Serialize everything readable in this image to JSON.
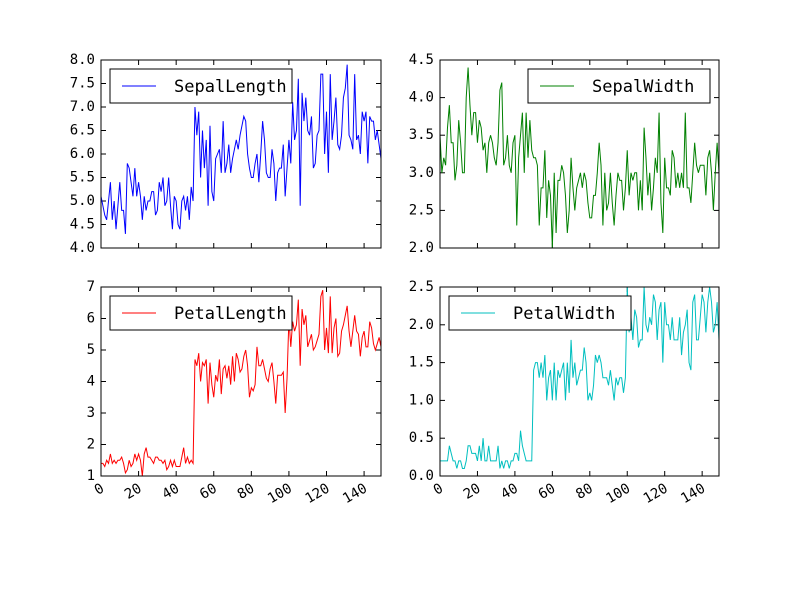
{
  "chart_data": [
    {
      "type": "line",
      "series": [
        {
          "name": "SepalLength",
          "color": "#0000ff",
          "values": [
            5.1,
            4.9,
            4.7,
            4.6,
            5.0,
            5.4,
            4.6,
            5.0,
            4.4,
            4.9,
            5.4,
            4.8,
            4.8,
            4.3,
            5.8,
            5.7,
            5.4,
            5.1,
            5.7,
            5.1,
            5.4,
            5.1,
            4.6,
            5.1,
            4.8,
            5.0,
            5.0,
            5.2,
            5.2,
            4.7,
            4.8,
            5.4,
            5.2,
            5.5,
            4.9,
            5.0,
            5.5,
            4.9,
            4.4,
            5.1,
            5.0,
            4.5,
            4.4,
            5.0,
            5.1,
            4.8,
            5.1,
            4.6,
            5.3,
            5.0,
            7.0,
            6.4,
            6.9,
            5.5,
            6.5,
            5.7,
            6.3,
            4.9,
            6.6,
            5.2,
            5.0,
            5.9,
            6.0,
            6.1,
            5.6,
            6.7,
            5.6,
            5.8,
            6.2,
            5.6,
            5.9,
            6.1,
            6.3,
            6.1,
            6.4,
            6.6,
            6.8,
            6.7,
            6.0,
            5.7,
            5.5,
            5.5,
            5.8,
            6.0,
            5.4,
            6.0,
            6.7,
            6.3,
            5.6,
            5.5,
            5.5,
            6.1,
            5.8,
            5.0,
            5.6,
            5.7,
            5.7,
            6.2,
            5.1,
            5.7,
            6.3,
            5.8,
            7.1,
            6.3,
            6.5,
            7.6,
            4.9,
            7.3,
            6.7,
            7.2,
            6.5,
            6.4,
            6.8,
            5.7,
            5.8,
            6.4,
            6.5,
            7.7,
            7.7,
            6.0,
            6.9,
            5.6,
            7.7,
            6.3,
            6.7,
            7.2,
            6.2,
            6.1,
            6.4,
            7.2,
            7.4,
            7.9,
            6.4,
            6.3,
            6.1,
            7.7,
            6.3,
            6.4,
            6.0,
            6.9,
            6.7,
            6.9,
            5.8,
            6.8,
            6.7,
            6.7,
            6.3,
            6.5,
            6.2,
            5.9
          ]
        }
      ],
      "xlim": [
        0,
        149
      ],
      "xticks": [
        0,
        20,
        40,
        60,
        80,
        100,
        120,
        140
      ],
      "ylim": [
        4.0,
        8.0
      ],
      "yticks": [
        {
          "value": 4.0,
          "label": "4.0"
        },
        4.5,
        {
          "value": 5.0,
          "label": "5.0"
        },
        5.5,
        {
          "value": 6.0,
          "label": "6.0"
        },
        6.5,
        {
          "value": 7.0,
          "label": "7.0"
        },
        7.5,
        {
          "value": 8.0,
          "label": "8.0"
        }
      ],
      "legend": "upper left"
    },
    {
      "type": "line",
      "series": [
        {
          "name": "SepalWidth",
          "color": "#008000",
          "values": [
            3.5,
            3.0,
            3.2,
            3.1,
            3.6,
            3.9,
            3.4,
            3.4,
            2.9,
            3.1,
            3.7,
            3.4,
            3.0,
            3.0,
            4.0,
            4.4,
            3.9,
            3.5,
            3.8,
            3.8,
            3.4,
            3.7,
            3.6,
            3.3,
            3.4,
            3.0,
            3.4,
            3.5,
            3.4,
            3.2,
            3.1,
            3.4,
            4.1,
            4.2,
            3.1,
            3.2,
            3.5,
            3.1,
            3.0,
            3.4,
            3.5,
            2.3,
            3.2,
            3.5,
            3.8,
            3.0,
            3.8,
            3.2,
            3.7,
            3.3,
            3.2,
            3.2,
            3.1,
            2.3,
            2.8,
            2.8,
            3.3,
            2.4,
            2.9,
            2.7,
            2.0,
            3.0,
            2.2,
            2.9,
            2.9,
            3.1,
            3.0,
            2.7,
            2.2,
            2.5,
            3.2,
            2.8,
            2.5,
            2.8,
            2.9,
            3.0,
            2.8,
            3.0,
            2.9,
            2.6,
            2.4,
            2.4,
            2.7,
            2.7,
            3.0,
            3.4,
            3.1,
            2.3,
            3.0,
            2.5,
            2.6,
            3.0,
            2.6,
            2.3,
            2.7,
            3.0,
            2.9,
            2.9,
            2.5,
            2.8,
            3.3,
            2.7,
            3.0,
            2.9,
            3.0,
            3.0,
            2.5,
            2.9,
            2.5,
            3.6,
            3.2,
            2.7,
            3.0,
            2.5,
            2.8,
            3.2,
            3.0,
            3.8,
            2.6,
            2.2,
            3.2,
            2.8,
            2.8,
            2.7,
            3.3,
            3.2,
            2.8,
            3.0,
            2.8,
            3.0,
            2.8,
            3.8,
            2.8,
            2.8,
            2.6,
            3.0,
            3.4,
            3.1,
            3.0,
            3.1,
            3.1,
            3.1,
            2.7,
            3.2,
            3.3,
            3.0,
            2.5,
            3.0,
            3.4,
            3.0
          ]
        }
      ],
      "xlim": [
        0,
        149
      ],
      "xticks": [
        0,
        20,
        40,
        60,
        80,
        100,
        120,
        140
      ],
      "ylim": [
        2.0,
        4.5
      ],
      "yticks": [
        {
          "value": 2.0,
          "label": "2.0"
        },
        2.5,
        {
          "value": 3.0,
          "label": "3.0"
        },
        3.5,
        {
          "value": 4.0,
          "label": "4.0"
        },
        4.5
      ],
      "legend": "upper right"
    },
    {
      "type": "line",
      "series": [
        {
          "name": "PetalLength",
          "color": "#ff0000",
          "values": [
            1.4,
            1.4,
            1.3,
            1.5,
            1.4,
            1.7,
            1.4,
            1.5,
            1.4,
            1.5,
            1.5,
            1.6,
            1.4,
            1.1,
            1.2,
            1.5,
            1.3,
            1.4,
            1.7,
            1.5,
            1.7,
            1.5,
            1.0,
            1.7,
            1.9,
            1.6,
            1.6,
            1.5,
            1.4,
            1.6,
            1.6,
            1.5,
            1.5,
            1.4,
            1.5,
            1.2,
            1.3,
            1.5,
            1.3,
            1.5,
            1.3,
            1.3,
            1.3,
            1.6,
            1.9,
            1.4,
            1.6,
            1.4,
            1.5,
            1.4,
            4.7,
            4.5,
            4.9,
            4.0,
            4.6,
            4.5,
            4.7,
            3.3,
            4.6,
            3.9,
            3.5,
            4.2,
            4.0,
            4.7,
            3.6,
            4.4,
            4.5,
            4.1,
            4.5,
            3.9,
            4.8,
            4.0,
            4.9,
            4.7,
            4.3,
            4.4,
            4.8,
            5.0,
            4.5,
            3.5,
            3.8,
            3.7,
            3.9,
            5.1,
            4.5,
            4.5,
            4.7,
            4.4,
            4.1,
            4.0,
            4.4,
            4.6,
            4.0,
            3.3,
            4.2,
            4.2,
            4.2,
            4.3,
            3.0,
            4.1,
            6.0,
            5.1,
            5.9,
            5.6,
            5.8,
            6.6,
            4.5,
            6.3,
            5.8,
            6.1,
            5.1,
            5.3,
            5.5,
            5.0,
            5.1,
            5.3,
            5.5,
            6.7,
            6.9,
            5.0,
            5.7,
            4.9,
            6.7,
            4.9,
            5.7,
            6.0,
            4.8,
            4.9,
            5.6,
            5.8,
            6.1,
            6.4,
            5.6,
            5.1,
            5.6,
            6.1,
            5.6,
            5.5,
            4.8,
            5.4,
            5.6,
            5.1,
            5.1,
            5.9,
            5.7,
            5.2,
            5.0,
            5.2,
            5.4,
            5.1
          ]
        }
      ],
      "xlim": [
        0,
        149
      ],
      "xticks": [
        0,
        20,
        40,
        60,
        80,
        100,
        120,
        140
      ],
      "ylim": [
        1,
        7
      ],
      "yticks": [
        1,
        2,
        3,
        4,
        5,
        6,
        7
      ],
      "legend": "upper left"
    },
    {
      "type": "line",
      "series": [
        {
          "name": "PetalWidth",
          "color": "#00bfbf",
          "values": [
            0.2,
            0.2,
            0.2,
            0.2,
            0.2,
            0.4,
            0.3,
            0.2,
            0.2,
            0.1,
            0.2,
            0.2,
            0.1,
            0.1,
            0.2,
            0.4,
            0.4,
            0.3,
            0.3,
            0.3,
            0.2,
            0.4,
            0.2,
            0.5,
            0.2,
            0.2,
            0.4,
            0.2,
            0.2,
            0.2,
            0.2,
            0.4,
            0.1,
            0.2,
            0.1,
            0.2,
            0.2,
            0.1,
            0.2,
            0.2,
            0.3,
            0.3,
            0.2,
            0.6,
            0.4,
            0.3,
            0.2,
            0.2,
            0.2,
            0.2,
            1.4,
            1.5,
            1.5,
            1.3,
            1.5,
            1.3,
            1.6,
            1.0,
            1.3,
            1.4,
            1.0,
            1.5,
            1.0,
            1.4,
            1.3,
            1.4,
            1.5,
            1.0,
            1.5,
            1.1,
            1.8,
            1.3,
            1.5,
            1.2,
            1.3,
            1.4,
            1.4,
            1.7,
            1.5,
            1.0,
            1.1,
            1.0,
            1.2,
            1.6,
            1.5,
            1.6,
            1.5,
            1.3,
            1.3,
            1.3,
            1.2,
            1.4,
            1.2,
            1.0,
            1.3,
            1.2,
            1.3,
            1.3,
            1.1,
            1.3,
            2.5,
            1.9,
            2.1,
            1.8,
            2.2,
            2.1,
            1.7,
            1.8,
            1.8,
            2.5,
            2.0,
            1.9,
            2.1,
            2.0,
            2.4,
            2.3,
            1.8,
            2.2,
            2.3,
            1.5,
            2.3,
            2.0,
            2.0,
            1.8,
            2.1,
            1.8,
            1.8,
            1.8,
            2.1,
            1.6,
            1.9,
            2.0,
            2.2,
            1.5,
            1.4,
            2.3,
            2.4,
            1.8,
            1.8,
            2.1,
            2.4,
            2.3,
            1.9,
            2.3,
            2.5,
            2.3,
            1.9,
            2.0,
            2.3,
            1.8
          ]
        }
      ],
      "xlim": [
        0,
        149
      ],
      "xticks": [
        0,
        20,
        40,
        60,
        80,
        100,
        120,
        140
      ],
      "ylim": [
        0.0,
        2.5
      ],
      "yticks": [
        {
          "value": 0.0,
          "label": "0.0"
        },
        0.5,
        {
          "value": 1.0,
          "label": "1.0"
        },
        1.5,
        {
          "value": 2.0,
          "label": "2.0"
        },
        2.5
      ],
      "legend": "upper left"
    }
  ]
}
